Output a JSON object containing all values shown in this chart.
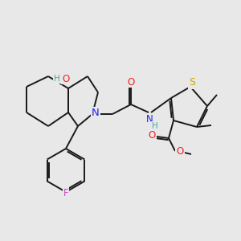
{
  "bg_color": "#e8e8e8",
  "bond_color": "#1a1a1a",
  "atom_colors": {
    "N": "#2020ee",
    "O": "#ee2020",
    "S": "#ccaa00",
    "F": "#cc44cc",
    "H": "#44aaaa"
  },
  "lw": 1.4,
  "fs": 8.0,
  "figsize": [
    3.0,
    3.0
  ],
  "dpi": 100
}
